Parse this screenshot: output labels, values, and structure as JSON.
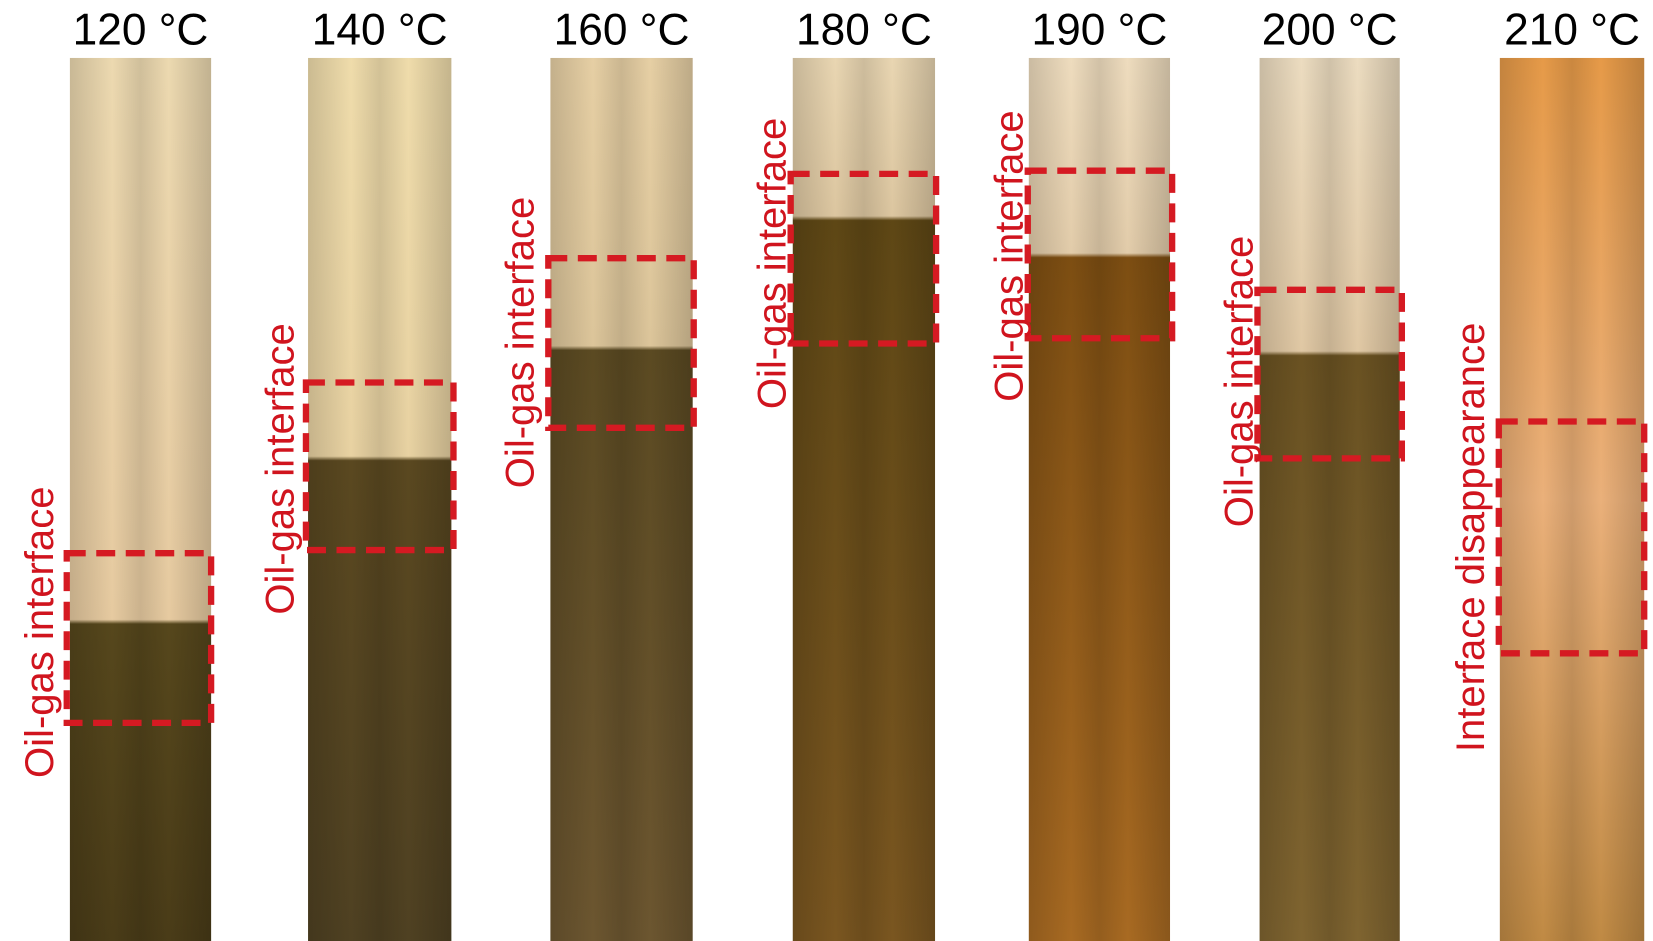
{
  "panels": [
    {
      "title": "120 °C",
      "label": "Oil-gas interface"
    },
    {
      "title": "140 °C",
      "label": "Oil-gas interface"
    },
    {
      "title": "160 °C",
      "label": "Oil-gas interface"
    },
    {
      "title": "180 °C",
      "label": "Oil-gas interface"
    },
    {
      "title": "190 °C",
      "label": "Oil-gas interface"
    },
    {
      "title": "200 °C",
      "label": "Oil-gas interface"
    },
    {
      "title": "210 °C",
      "label": "Interface disappearance"
    }
  ]
}
